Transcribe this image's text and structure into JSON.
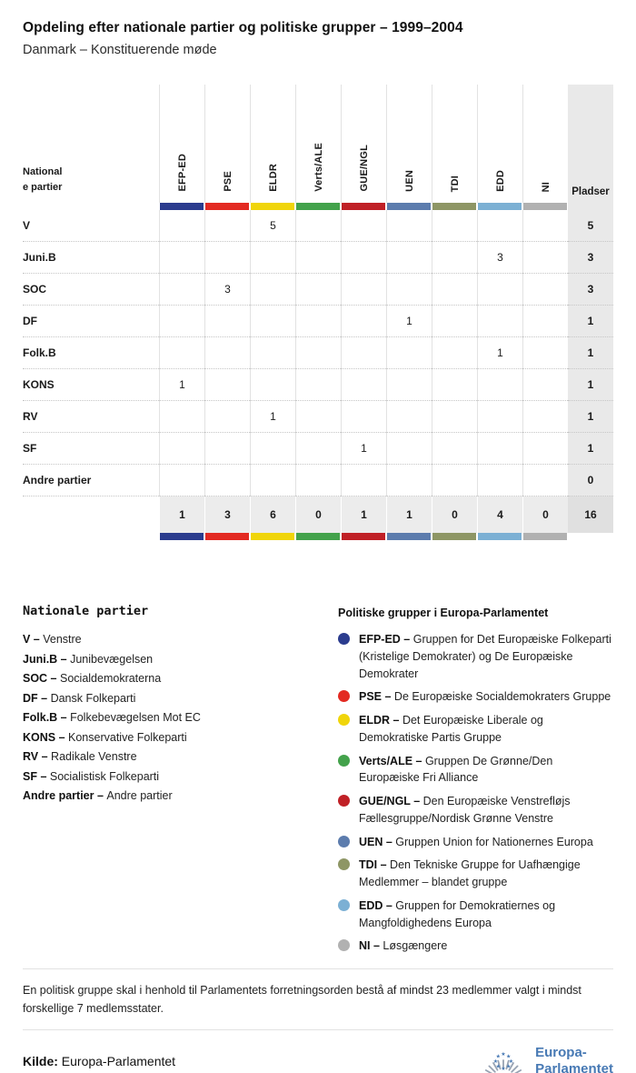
{
  "header": {
    "title": "Opdeling efter nationale partier og politiske grupper – 1999–2004",
    "subtitle": "Danmark – Konstituerende møde"
  },
  "table": {
    "corner_label_lines": [
      "National",
      "e partier"
    ],
    "seats_header": "Pladser",
    "group_colors": {
      "EFP-ED": "#2b3c8e",
      "PSE": "#e32a22",
      "ELDR": "#f0d50a",
      "Verts/ALE": "#43a24b",
      "GUE/NGL": "#c02026",
      "UEN": "#5c7cad",
      "TDI": "#8e9665",
      "EDD": "#7cb0d4",
      "NI": "#b1b1b1"
    }
  },
  "chart_data": {
    "type": "table",
    "title": "Opdeling efter nationale partier og politiske grupper – 1999–2004",
    "subtitle": "Danmark – Konstituerende møde",
    "columns": [
      "EFP-ED",
      "PSE",
      "ELDR",
      "Verts/ALE",
      "GUE/NGL",
      "UEN",
      "TDI",
      "EDD",
      "NI",
      "Pladser"
    ],
    "rows": [
      {
        "party": "V",
        "values": [
          null,
          null,
          5,
          null,
          null,
          null,
          null,
          null,
          null
        ],
        "pladser": 5
      },
      {
        "party": "Juni.B",
        "values": [
          null,
          null,
          null,
          null,
          null,
          null,
          null,
          3,
          null
        ],
        "pladser": 3
      },
      {
        "party": "SOC",
        "values": [
          null,
          3,
          null,
          null,
          null,
          null,
          null,
          null,
          null
        ],
        "pladser": 3
      },
      {
        "party": "DF",
        "values": [
          null,
          null,
          null,
          null,
          null,
          1,
          null,
          null,
          null
        ],
        "pladser": 1
      },
      {
        "party": "Folk.B",
        "values": [
          null,
          null,
          null,
          null,
          null,
          null,
          null,
          1,
          null
        ],
        "pladser": 1
      },
      {
        "party": "KONS",
        "values": [
          1,
          null,
          null,
          null,
          null,
          null,
          null,
          null,
          null
        ],
        "pladser": 1
      },
      {
        "party": "RV",
        "values": [
          null,
          null,
          1,
          null,
          null,
          null,
          null,
          null,
          null
        ],
        "pladser": 1
      },
      {
        "party": "SF",
        "values": [
          null,
          null,
          null,
          null,
          1,
          null,
          null,
          null,
          null
        ],
        "pladser": 1
      },
      {
        "party": "Andre partier",
        "values": [
          null,
          null,
          null,
          null,
          null,
          null,
          null,
          null,
          null
        ],
        "pladser": 0
      }
    ],
    "totals": {
      "values": [
        1,
        3,
        6,
        0,
        1,
        1,
        0,
        4,
        0
      ],
      "pladser": 16
    }
  },
  "legend_parties": {
    "title": "Nationale partier",
    "items": [
      {
        "abbr": "V",
        "name": "Venstre"
      },
      {
        "abbr": "Juni.B",
        "name": "Junibevægelsen"
      },
      {
        "abbr": "SOC",
        "name": "Socialdemokraterna"
      },
      {
        "abbr": "DF",
        "name": "Dansk Folkeparti"
      },
      {
        "abbr": "Folk.B",
        "name": "Folkebevægelsen Mot EC"
      },
      {
        "abbr": "KONS",
        "name": "Konservative Folkeparti"
      },
      {
        "abbr": "RV",
        "name": "Radikale Venstre"
      },
      {
        "abbr": "SF",
        "name": "Socialistisk Folkeparti"
      },
      {
        "abbr": "Andre partier",
        "name": "Andre partier"
      }
    ]
  },
  "legend_groups": {
    "title": "Politiske grupper i Europa-Parlamentet",
    "items": [
      {
        "abbr": "EFP-ED",
        "name": "Gruppen for Det Europæiske Folkeparti (Kristelige Demokrater) og De Europæiske Demokrater"
      },
      {
        "abbr": "PSE",
        "name": "De Europæiske Socialdemokraters Gruppe"
      },
      {
        "abbr": "ELDR",
        "name": "Det Europæiske Liberale og Demokratiske Partis Gruppe"
      },
      {
        "abbr": "Verts/ALE",
        "name": "Gruppen De Grønne/Den Europæiske Fri Alliance"
      },
      {
        "abbr": "GUE/NGL",
        "name": "Den Europæiske Venstrefløjs Fællesgruppe/Nordisk Grønne Venstre"
      },
      {
        "abbr": "UEN",
        "name": "Gruppen Union for Nationernes Europa"
      },
      {
        "abbr": "TDI",
        "name": "Den Tekniske Gruppe for Uafhængige Medlemmer – blandet gruppe"
      },
      {
        "abbr": "EDD",
        "name": "Gruppen for Demokratiernes og Mangfoldighedens Europa"
      },
      {
        "abbr": "NI",
        "name": "Løsgængere"
      }
    ]
  },
  "footnote": "En politisk gruppe skal i henhold til Parlamentets forretningsorden bestå af mindst 23 medlemmer valgt i mindst forskellige 7 medlemsstater.",
  "source": {
    "label": "Kilde:",
    "value": "Europa-Parlamentet",
    "logo_line1": "Europa-",
    "logo_line2": "Parlamentet"
  }
}
